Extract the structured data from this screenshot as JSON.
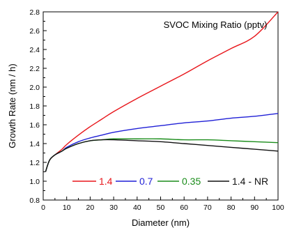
{
  "chart_data": {
    "type": "line",
    "title": "SVOC Mixing Ratio (pptv)",
    "xlabel": "Diameter (nm)",
    "ylabel": "Growth Rate (nm / h)",
    "xlim": [
      0,
      100
    ],
    "ylim": [
      0.8,
      2.8
    ],
    "x_ticks": [
      "0",
      "10",
      "20",
      "30",
      "40",
      "50",
      "60",
      "70",
      "80",
      "90",
      "100"
    ],
    "y_ticks": [
      "0.8",
      "1.0",
      "1.2",
      "1.4",
      "1.6",
      "1.8",
      "2.0",
      "2.2",
      "2.4",
      "2.6",
      "2.8"
    ],
    "grid": false,
    "legend_position": "bottom-right",
    "series": [
      {
        "name": "1.4",
        "color": "#e8161b",
        "points": [
          [
            1,
            1.1
          ],
          [
            2,
            1.18
          ],
          [
            3,
            1.235
          ],
          [
            5,
            1.28
          ],
          [
            8,
            1.34
          ],
          [
            10,
            1.39
          ],
          [
            15,
            1.49
          ],
          [
            20,
            1.58
          ],
          [
            25,
            1.66
          ],
          [
            30,
            1.74
          ],
          [
            40,
            1.88
          ],
          [
            50,
            2.01
          ],
          [
            60,
            2.14
          ],
          [
            70,
            2.28
          ],
          [
            80,
            2.41
          ],
          [
            90,
            2.54
          ],
          [
            100,
            2.8
          ]
        ]
      },
      {
        "name": "0.7",
        "color": "#1f1fd6",
        "points": [
          [
            1,
            1.1
          ],
          [
            2,
            1.18
          ],
          [
            3,
            1.235
          ],
          [
            5,
            1.28
          ],
          [
            8,
            1.32
          ],
          [
            10,
            1.36
          ],
          [
            15,
            1.42
          ],
          [
            20,
            1.46
          ],
          [
            25,
            1.49
          ],
          [
            30,
            1.52
          ],
          [
            40,
            1.56
          ],
          [
            50,
            1.59
          ],
          [
            60,
            1.62
          ],
          [
            70,
            1.64
          ],
          [
            80,
            1.67
          ],
          [
            90,
            1.69
          ],
          [
            100,
            1.72
          ]
        ]
      },
      {
        "name": "0.35",
        "color": "#1a8c1a",
        "points": [
          [
            1,
            1.1
          ],
          [
            2,
            1.18
          ],
          [
            3,
            1.235
          ],
          [
            5,
            1.28
          ],
          [
            8,
            1.32
          ],
          [
            10,
            1.35
          ],
          [
            15,
            1.4
          ],
          [
            20,
            1.43
          ],
          [
            25,
            1.44
          ],
          [
            30,
            1.45
          ],
          [
            40,
            1.45
          ],
          [
            50,
            1.45
          ],
          [
            60,
            1.44
          ],
          [
            70,
            1.44
          ],
          [
            80,
            1.43
          ],
          [
            90,
            1.42
          ],
          [
            100,
            1.41
          ]
        ]
      },
      {
        "name": "1.4 - NR",
        "color": "#111111",
        "points": [
          [
            1,
            1.1
          ],
          [
            2,
            1.18
          ],
          [
            3,
            1.235
          ],
          [
            5,
            1.28
          ],
          [
            8,
            1.32
          ],
          [
            10,
            1.35
          ],
          [
            15,
            1.4
          ],
          [
            20,
            1.43
          ],
          [
            25,
            1.44
          ],
          [
            30,
            1.44
          ],
          [
            40,
            1.43
          ],
          [
            50,
            1.42
          ],
          [
            60,
            1.4
          ],
          [
            70,
            1.38
          ],
          [
            80,
            1.36
          ],
          [
            90,
            1.34
          ],
          [
            100,
            1.32
          ]
        ]
      }
    ]
  }
}
